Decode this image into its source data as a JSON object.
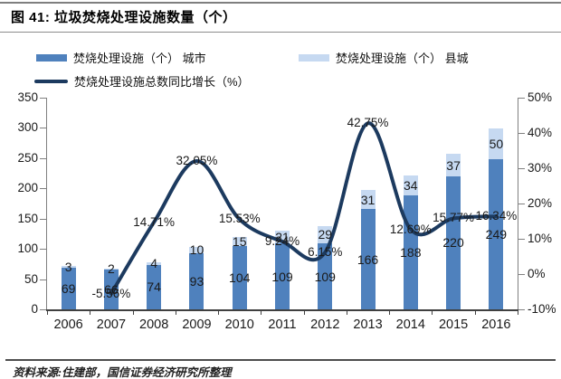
{
  "figure": {
    "title": "图 41: 垃圾焚烧处理设施数量（个）",
    "source": "资料来源:住建部，国信证券经济研究所整理"
  },
  "legend": {
    "items": [
      {
        "label": "焚烧处理设施（个） 城市",
        "marker": "bar",
        "color": "#4F81BD"
      },
      {
        "label": "焚烧处理设施（个） 县城",
        "marker": "bar",
        "color": "#C6D9F1"
      },
      {
        "label": "焚烧处理设施总数同比增长（%）",
        "marker": "line",
        "color": "#1C3A5F"
      }
    ]
  },
  "chart_data": {
    "type": "bar",
    "subtype": "stacked-column-with-line-overlay",
    "title": "垃圾焚烧处理设施数量（个）",
    "categories": [
      "2006",
      "2007",
      "2008",
      "2009",
      "2010",
      "2011",
      "2012",
      "2013",
      "2014",
      "2015",
      "2016"
    ],
    "series": [
      {
        "name": "焚烧处理设施（个） 城市",
        "type": "bar",
        "stacked": true,
        "color": "#4F81BD",
        "values": [
          69,
          66,
          74,
          93,
          104,
          109,
          109,
          166,
          188,
          220,
          249
        ]
      },
      {
        "name": "焚烧处理设施（个） 县城",
        "type": "bar",
        "stacked": true,
        "color": "#C6D9F1",
        "values": [
          3,
          2,
          4,
          10,
          15,
          21,
          29,
          31,
          34,
          37,
          50
        ]
      },
      {
        "name": "焚烧处理设施总数同比增长（%）",
        "type": "line",
        "axis": "right",
        "color": "#1C3A5F",
        "values": [
          null,
          -5.56,
          14.71,
          32.05,
          15.53,
          9.24,
          6.15,
          42.75,
          12.69,
          15.77,
          16.34
        ],
        "labels": [
          "",
          "-5.56%",
          "14.71%",
          "32.05%",
          "15.53%",
          "9.24%",
          "6.15%",
          "42.75%",
          "12.69%",
          "15.77%",
          "16.34%"
        ]
      }
    ],
    "left_axis": {
      "min": 0,
      "max": 350,
      "tick_labels": [
        "350",
        "300",
        "250",
        "200",
        "150",
        "100",
        "50",
        "0"
      ]
    },
    "right_axis": {
      "min": -10,
      "max": 50,
      "tick_labels": [
        "50%",
        "40%",
        "30%",
        "20%",
        "10%",
        "0%",
        "-10%"
      ]
    },
    "grid": false,
    "legend_position": "top"
  }
}
